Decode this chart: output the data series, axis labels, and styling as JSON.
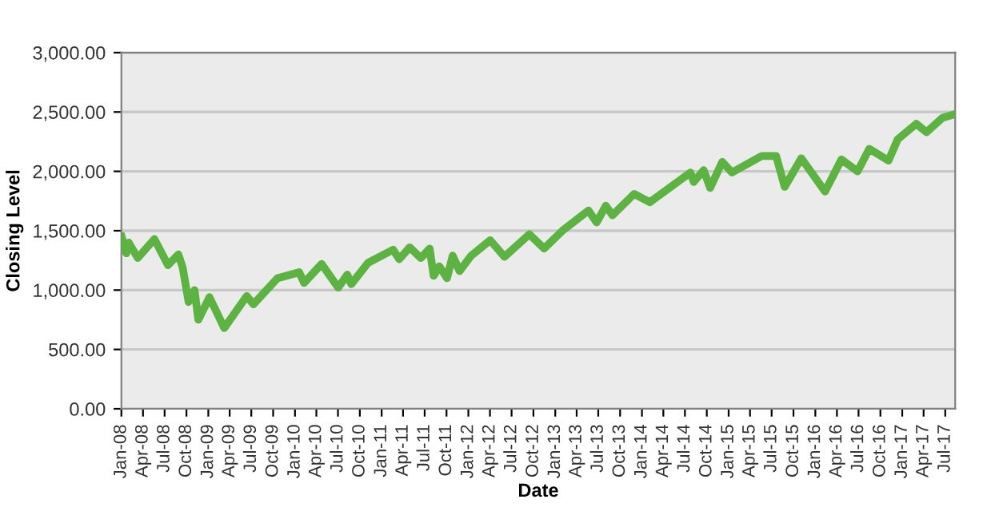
{
  "chart_data": {
    "type": "line",
    "xlabel": "Date",
    "ylabel": "Closing Level",
    "x": [
      "2008-01-02",
      "2008-01-22",
      "2008-02-01",
      "2008-03-10",
      "2008-05-19",
      "2008-07-15",
      "2008-08-28",
      "2008-09-15",
      "2008-10-10",
      "2008-11-04",
      "2008-11-20",
      "2009-01-06",
      "2009-03-09",
      "2009-06-12",
      "2009-07-10",
      "2009-10-19",
      "2010-01-19",
      "2010-02-08",
      "2010-04-23",
      "2010-07-02",
      "2010-08-09",
      "2010-08-26",
      "2010-11-05",
      "2011-02-18",
      "2011-03-16",
      "2011-04-29",
      "2011-06-15",
      "2011-07-22",
      "2011-08-08",
      "2011-09-01",
      "2011-10-03",
      "2011-10-27",
      "2011-11-25",
      "2012-01-13",
      "2012-04-02",
      "2012-06-01",
      "2012-09-14",
      "2012-11-15",
      "2013-01-31",
      "2013-05-21",
      "2013-06-24",
      "2013-08-02",
      "2013-08-30",
      "2013-11-29",
      "2014-02-03",
      "2014-07-24",
      "2014-08-07",
      "2014-09-18",
      "2014-10-15",
      "2014-12-05",
      "2015-01-15",
      "2015-05-21",
      "2015-07-20",
      "2015-08-25",
      "2015-11-03",
      "2016-02-11",
      "2016-04-20",
      "2016-06-27",
      "2016-08-15",
      "2016-11-04",
      "2016-12-13",
      "2017-03-01",
      "2017-04-13",
      "2017-06-19",
      "2017-08-08"
    ],
    "series": [
      {
        "color": "#5db342",
        "values": [
          1450,
          1310,
          1400,
          1270,
          1430,
          1210,
          1300,
          1190,
          900,
          1000,
          750,
          940,
          680,
          950,
          880,
          1100,
          1150,
          1060,
          1220,
          1020,
          1130,
          1050,
          1230,
          1340,
          1260,
          1360,
          1270,
          1350,
          1120,
          1200,
          1100,
          1290,
          1160,
          1290,
          1420,
          1280,
          1470,
          1350,
          1500,
          1670,
          1570,
          1710,
          1630,
          1810,
          1740,
          1990,
          1910,
          2010,
          1860,
          2080,
          1990,
          2130,
          2130,
          1870,
          2110,
          1830,
          2100,
          2000,
          2190,
          2090,
          2270,
          2400,
          2330,
          2450,
          2480
        ]
      }
    ],
    "xlim": [
      "2008-01-01",
      "2017-08-12"
    ],
    "xticks": [
      {
        "value": "2008-01-01",
        "label": "Jan-08"
      },
      {
        "value": "2008-04-01",
        "label": "Apr-08"
      },
      {
        "value": "2008-07-01",
        "label": "Jul-08"
      },
      {
        "value": "2008-10-01",
        "label": "Oct-08"
      },
      {
        "value": "2009-01-01",
        "label": "Jan-09"
      },
      {
        "value": "2009-04-01",
        "label": "Apr-09"
      },
      {
        "value": "2009-07-01",
        "label": "Jul-09"
      },
      {
        "value": "2009-10-01",
        "label": "Oct-09"
      },
      {
        "value": "2010-01-01",
        "label": "Jan-10"
      },
      {
        "value": "2010-04-01",
        "label": "Apr-10"
      },
      {
        "value": "2010-07-01",
        "label": "Jul-10"
      },
      {
        "value": "2010-10-01",
        "label": "Oct-10"
      },
      {
        "value": "2011-01-01",
        "label": "Jan-11"
      },
      {
        "value": "2011-04-01",
        "label": "Apr-11"
      },
      {
        "value": "2011-07-01",
        "label": "Jul-11"
      },
      {
        "value": "2011-10-01",
        "label": "Oct-11"
      },
      {
        "value": "2012-01-01",
        "label": "Jan-12"
      },
      {
        "value": "2012-04-01",
        "label": "Apr-12"
      },
      {
        "value": "2012-07-01",
        "label": "Jul-12"
      },
      {
        "value": "2012-10-01",
        "label": "Oct-12"
      },
      {
        "value": "2013-01-01",
        "label": "Jan-13"
      },
      {
        "value": "2013-04-01",
        "label": "Apr-13"
      },
      {
        "value": "2013-07-01",
        "label": "Jul-13"
      },
      {
        "value": "2013-10-01",
        "label": "Oct-13"
      },
      {
        "value": "2014-01-01",
        "label": "Jan-14"
      },
      {
        "value": "2014-04-01",
        "label": "Apr-14"
      },
      {
        "value": "2014-07-01",
        "label": "Jul-14"
      },
      {
        "value": "2014-10-01",
        "label": "Oct-14"
      },
      {
        "value": "2015-01-01",
        "label": "Jan-15"
      },
      {
        "value": "2015-04-01",
        "label": "Apr-15"
      },
      {
        "value": "2015-07-01",
        "label": "Jul-15"
      },
      {
        "value": "2015-10-01",
        "label": "Oct-15"
      },
      {
        "value": "2016-01-01",
        "label": "Jan-16"
      },
      {
        "value": "2016-04-01",
        "label": "Apr-16"
      },
      {
        "value": "2016-07-01",
        "label": "Jul-16"
      },
      {
        "value": "2016-10-01",
        "label": "Oct-16"
      },
      {
        "value": "2017-01-01",
        "label": "Jan-17"
      },
      {
        "value": "2017-04-01",
        "label": "Apr-17"
      },
      {
        "value": "2017-07-01",
        "label": "Jul-17"
      }
    ],
    "ylim": [
      0,
      3000
    ],
    "yticks": [
      {
        "value": 0,
        "label": "0.00"
      },
      {
        "value": 500,
        "label": "500.00"
      },
      {
        "value": 1000,
        "label": "1,000.00"
      },
      {
        "value": 1500,
        "label": "1,500.00"
      },
      {
        "value": 2000,
        "label": "2,000.00"
      },
      {
        "value": 2500,
        "label": "2,500.00"
      },
      {
        "value": 3000,
        "label": "3,000.00"
      }
    ],
    "grid": "y",
    "marker": "none",
    "line_style": "solid"
  }
}
